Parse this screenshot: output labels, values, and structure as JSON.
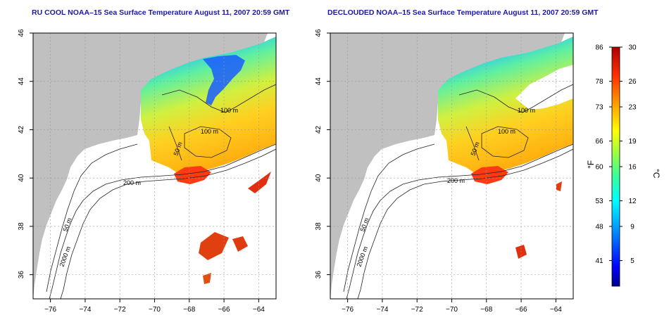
{
  "left_panel": {
    "title": "RU COOL NOAA–15 Sea Surface Temperature August 11, 2007 20:59 GMT",
    "contour_labels": [
      "100 m",
      "100 m",
      "50 m",
      "200 m",
      "50 m",
      "2000 m"
    ]
  },
  "right_panel": {
    "title": "DECLOUDED NOAA–15 Sea Surface Temperature August 11, 2007 20:59 GMT",
    "contour_labels": [
      "100 m",
      "100 m",
      "50 m",
      "200 m",
      "50 m",
      "2000 m"
    ]
  },
  "map_axes": {
    "lon_ticks": [
      "−76",
      "−74",
      "−72",
      "−70",
      "−68",
      "−66",
      "−64"
    ],
    "lat_ticks": [
      "36",
      "38",
      "40",
      "42",
      "44",
      "46"
    ],
    "lon_range": [
      -77,
      -63
    ],
    "lat_range": [
      35,
      46
    ],
    "grid": "dotted"
  },
  "colorbar": {
    "f_label": "°F",
    "c_label": "°C",
    "f_ticks": [
      "86",
      "78",
      "73",
      "66",
      "60",
      "53",
      "48",
      "41"
    ],
    "c_ticks": [
      "30",
      "26",
      "23",
      "19",
      "16",
      "12",
      "9",
      "5"
    ],
    "min_c": 2,
    "max_c": 30,
    "colors": [
      "#00008b",
      "#0000ff",
      "#00a0ff",
      "#00ffff",
      "#40ff90",
      "#a0ff40",
      "#ffff00",
      "#ffa000",
      "#ff3000",
      "#b00000"
    ]
  },
  "colors": {
    "land": "#c0c0c0",
    "title": "#1a1aa0",
    "contour": "#222222"
  }
}
